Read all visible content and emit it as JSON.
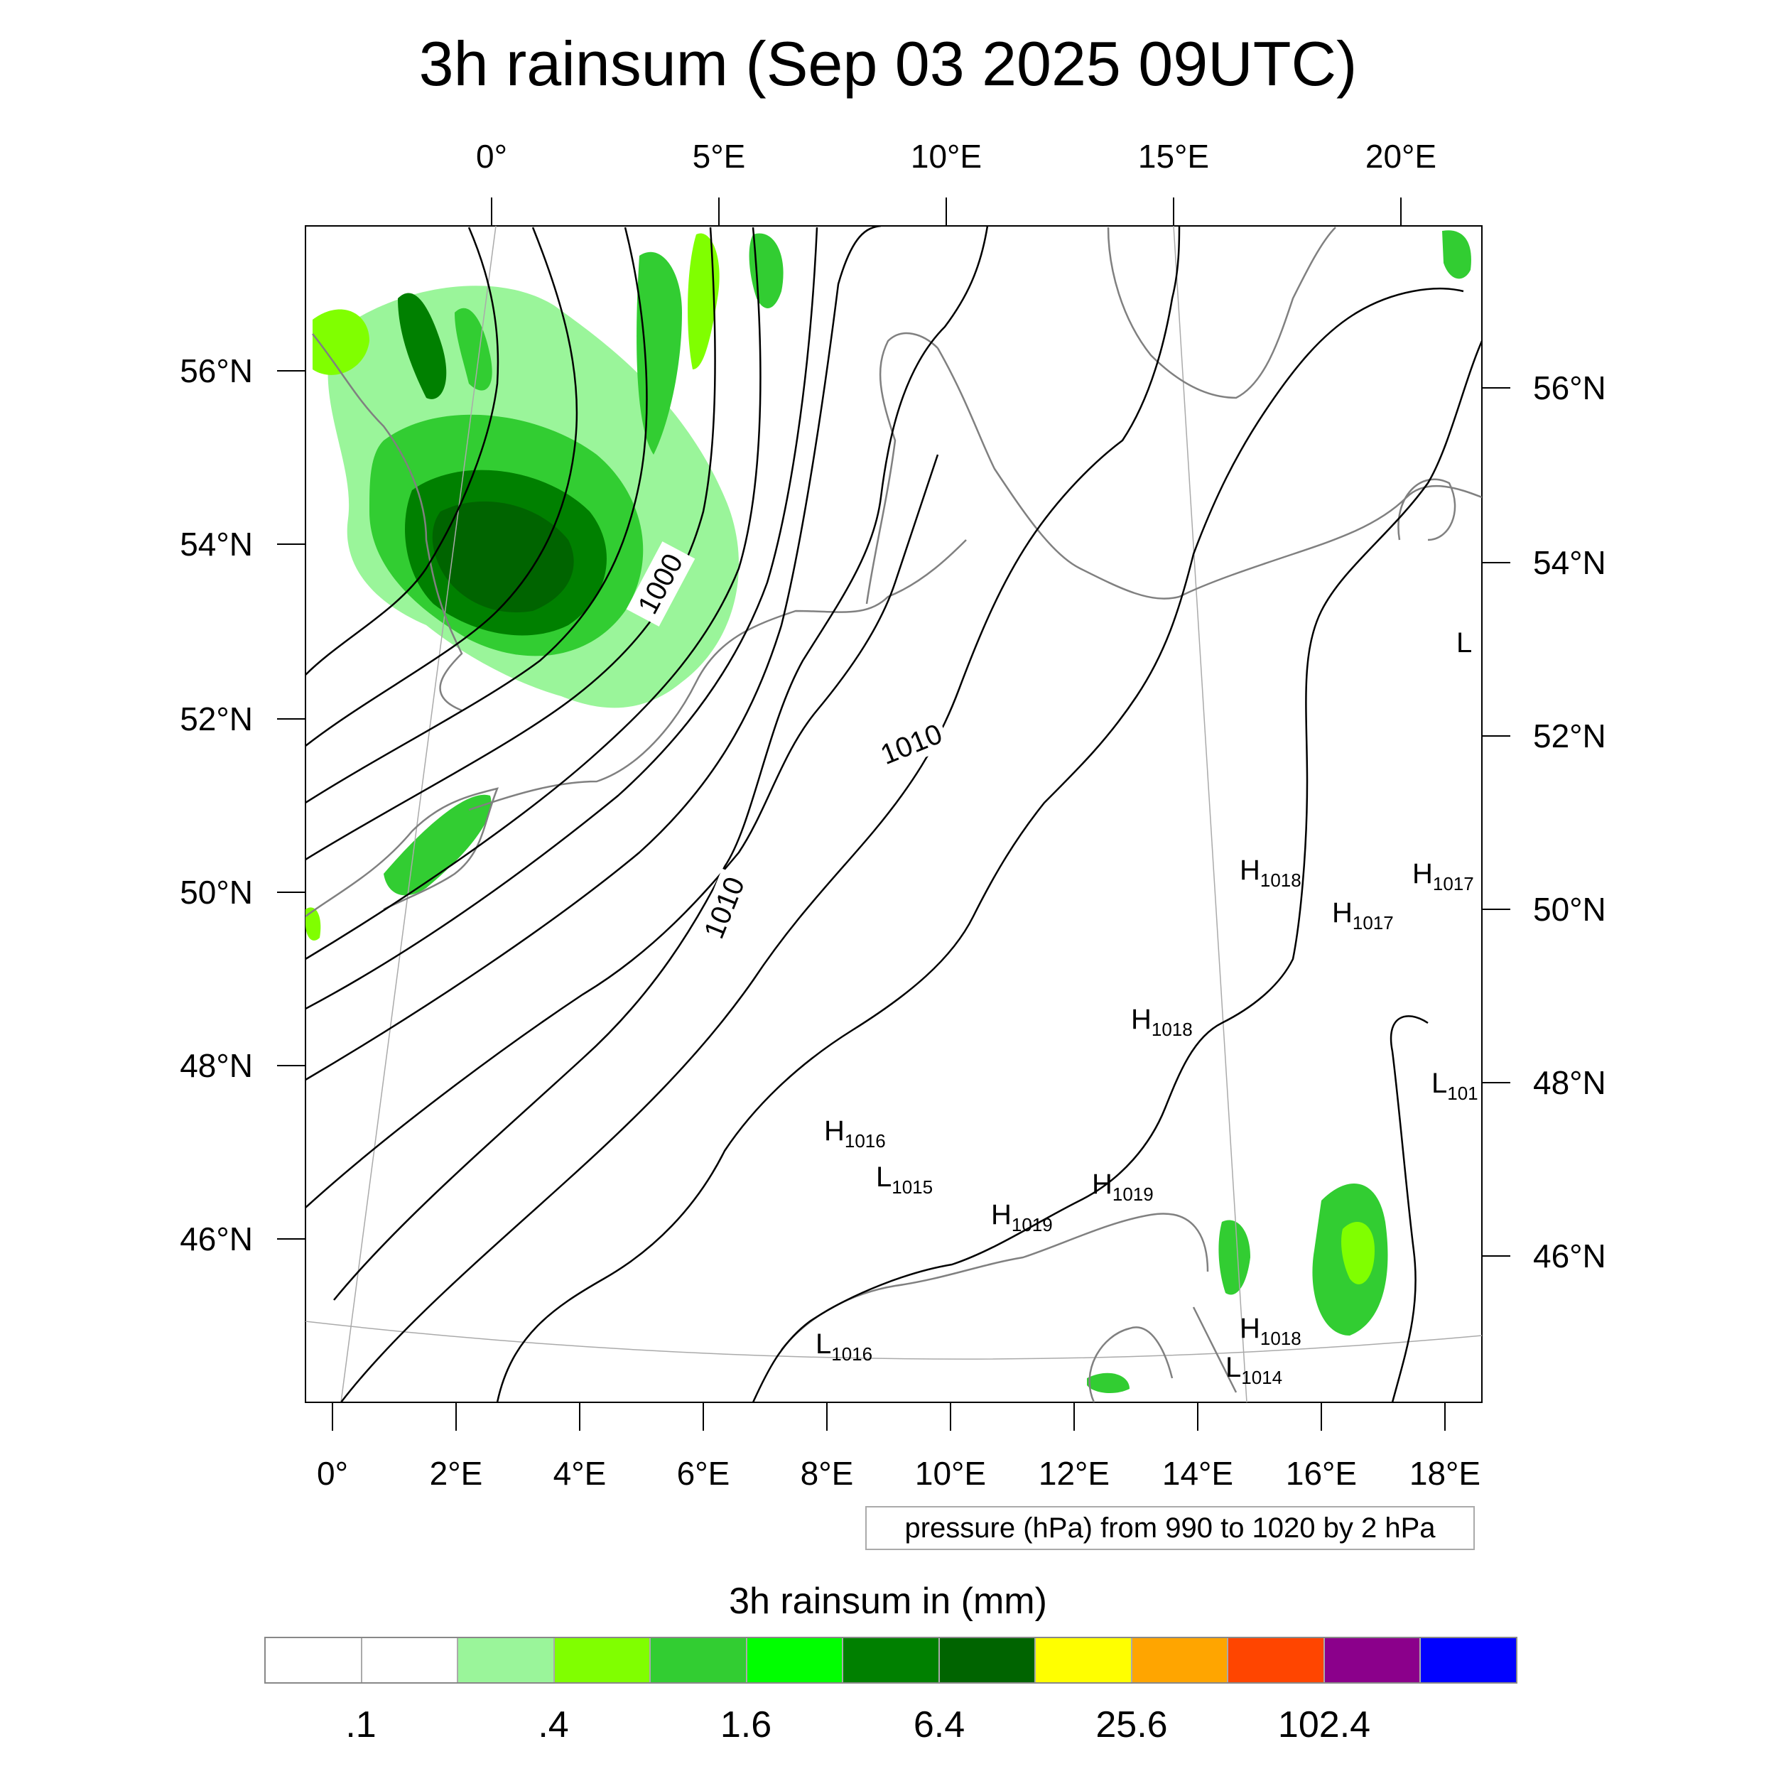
{
  "title": "3h rainsum (Sep 03 2025 09UTC)",
  "top_lon_labels": [
    "0°",
    "5°E",
    "10°E",
    "15°E",
    "20°E"
  ],
  "bottom_lon_labels": [
    "0°",
    "2°E",
    "4°E",
    "6°E",
    "8°E",
    "10°E",
    "12°E",
    "14°E",
    "16°E",
    "18°E"
  ],
  "left_lat_labels": [
    "56°N",
    "54°N",
    "52°N",
    "50°N",
    "48°N",
    "46°N"
  ],
  "right_lat_labels": [
    "56°N",
    "54°N",
    "52°N",
    "50°N",
    "48°N",
    "46°N"
  ],
  "contour_labels": [
    "1000",
    "1010",
    "1010"
  ],
  "pressure_centers": [
    {
      "type": "H",
      "value": "1018"
    },
    {
      "type": "H",
      "value": "1017"
    },
    {
      "type": "H",
      "value": "1017"
    },
    {
      "type": "H",
      "value": "1018"
    },
    {
      "type": "H",
      "value": "1016"
    },
    {
      "type": "L",
      "value": "1015"
    },
    {
      "type": "H",
      "value": "1019"
    },
    {
      "type": "H",
      "value": "1019"
    },
    {
      "type": "L",
      "value": "1016"
    },
    {
      "type": "H",
      "value": "1018"
    },
    {
      "type": "L",
      "value": "1014"
    },
    {
      "type": "L",
      "value": "101"
    },
    {
      "type": "L",
      "value": ""
    }
  ],
  "pressure_note": "pressure (hPa) from 990 to 1020 by 2 hPa",
  "legend": {
    "title": "3h rainsum in (mm)",
    "colors": [
      "#ffffff",
      "#ffffff",
      "#9af59a",
      "#80ff00",
      "#32cd32",
      "#00ff00",
      "#008000",
      "#006400",
      "#ffff00",
      "#ffa500",
      "#ff4500",
      "#8b008b",
      "#0000ff"
    ],
    "tick_labels": [
      ".1",
      ".4",
      "1.6",
      "6.4",
      "25.6",
      "102.4"
    ]
  }
}
